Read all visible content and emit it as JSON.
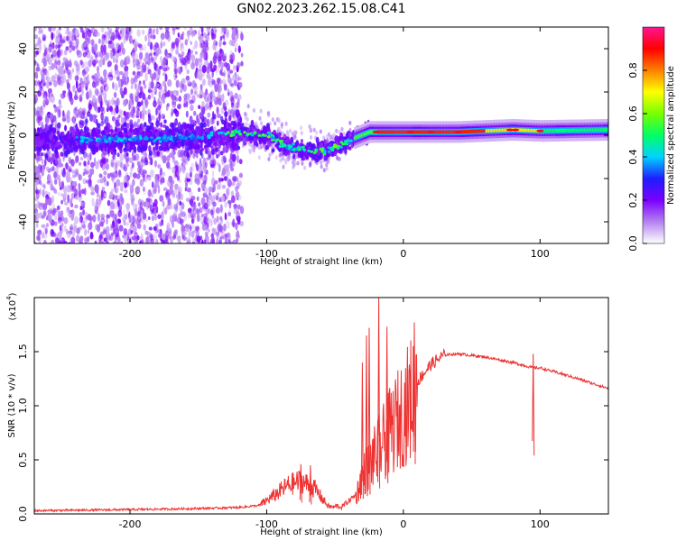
{
  "title": "GN02.2023.262.15.08.C41",
  "chart_data": [
    {
      "type": "heatmap",
      "xlabel": "Height of straight line (km)",
      "ylabel": "Frequency (Hz)",
      "xlim": [
        -270,
        150
      ],
      "ylim": [
        -50,
        50
      ],
      "xticks": [
        -200,
        -100,
        0,
        100
      ],
      "yticks": [
        -40,
        -20,
        0,
        20,
        40
      ],
      "colorbar": {
        "label": "Normalized spectral amplitude",
        "range": [
          0,
          1
        ],
        "ticks": [
          "0.0",
          "0.2",
          "0.4",
          "0.6",
          "0.8"
        ],
        "colors": [
          "#ffffff",
          "#b482f0",
          "#7a00ff",
          "#1e1eff",
          "#00d2ff",
          "#00ff64",
          "#78ff00",
          "#ffff00",
          "#ff8000",
          "#ff0000",
          "#ff1493"
        ]
      },
      "ridge": {
        "x": [
          -270,
          -220,
          -180,
          -150,
          -120,
          -100,
          -85,
          -70,
          -55,
          -45,
          -35,
          -25,
          -10,
          0,
          40,
          80,
          100,
          150
        ],
        "freq": [
          -2,
          -2,
          -1.5,
          -1,
          1.5,
          0,
          -5,
          -7,
          -7,
          -4,
          -1,
          1.5,
          1.5,
          1.5,
          1.5,
          2.5,
          2,
          2.5
        ]
      }
    },
    {
      "type": "line",
      "xlabel": "Height of straight line (km)",
      "ylabel": "SNR (10 * v/v)",
      "scale_label": "(x10",
      "scale_exp": "4",
      "xlim": [
        -270,
        150
      ],
      "ylim": [
        0,
        2
      ],
      "xticks": [
        -200,
        -100,
        0,
        100
      ],
      "yticks": [
        "0.0",
        "0.5",
        "1.0",
        "1.5"
      ],
      "ytick_values": [
        0,
        0.5,
        1.0,
        1.5
      ],
      "color": "#ee3333",
      "series": [
        {
          "x": [
            -270,
            -200,
            -150,
            -120,
            -105,
            -95,
            -85,
            -75,
            -65,
            -55,
            -45,
            -35,
            -30,
            -25,
            -20,
            -15,
            -10,
            -5,
            0,
            5,
            10,
            20,
            30,
            40,
            60,
            80,
            95,
            100,
            120,
            150
          ],
          "y": [
            0.02,
            0.03,
            0.04,
            0.05,
            0.07,
            0.14,
            0.22,
            0.26,
            0.2,
            0.06,
            0.04,
            0.15,
            0.35,
            0.45,
            0.55,
            0.65,
            0.75,
            0.85,
            0.95,
            1.05,
            1.22,
            1.38,
            1.47,
            1.48,
            1.45,
            1.4,
            1.35,
            1.35,
            1.28,
            1.16
          ]
        }
      ],
      "spikes": [
        {
          "x": -75,
          "y": 0.46
        },
        {
          "x": -68,
          "y": 0.45
        },
        {
          "x": -30,
          "y": 1.4
        },
        {
          "x": -27,
          "y": 1.65
        },
        {
          "x": -25,
          "y": 1.72
        },
        {
          "x": -18,
          "y": 2.0
        },
        {
          "x": -12,
          "y": 1.73
        },
        {
          "x": 8,
          "y": 1.77
        },
        {
          "x": 95,
          "y": 1.48
        }
      ]
    }
  ]
}
